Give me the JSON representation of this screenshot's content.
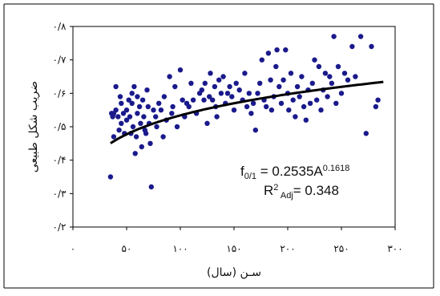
{
  "chart_data": {
    "type": "scatter",
    "title": "",
    "xlabel": "سـن (سال)",
    "ylabel": "ضریب شکل طبیعی",
    "xlim": [
      0,
      300
    ],
    "ylim": [
      0.2,
      0.8
    ],
    "x_ticks": [
      "۰",
      "۵۰",
      "۱۰۰",
      "۱۵۰",
      "۲۰۰",
      "۲۵۰",
      "۳۰۰"
    ],
    "y_ticks": [
      "۰/۲",
      "۰/۳",
      "۰/۴",
      "۰/۵",
      "۰/۶",
      "۰/۷",
      "۰/۸"
    ],
    "x_tick_values": [
      0,
      50,
      100,
      150,
      200,
      250,
      300
    ],
    "y_tick_values": [
      0.2,
      0.3,
      0.4,
      0.5,
      0.6,
      0.7,
      0.8
    ],
    "grid": false,
    "point_color": "#1a1a8c",
    "curve_color": "#000000",
    "series": [
      {
        "points": [
          [
            35,
            0.35
          ],
          [
            36,
            0.54
          ],
          [
            37,
            0.53
          ],
          [
            38,
            0.54
          ],
          [
            38,
            0.47
          ],
          [
            40,
            0.62
          ],
          [
            40,
            0.55
          ],
          [
            42,
            0.53
          ],
          [
            43,
            0.49
          ],
          [
            44,
            0.59
          ],
          [
            45,
            0.57
          ],
          [
            45,
            0.51
          ],
          [
            47,
            0.54
          ],
          [
            48,
            0.48
          ],
          [
            50,
            0.55
          ],
          [
            50,
            0.52
          ],
          [
            52,
            0.58
          ],
          [
            53,
            0.53
          ],
          [
            54,
            0.48
          ],
          [
            55,
            0.6
          ],
          [
            55,
            0.57
          ],
          [
            56,
            0.5
          ],
          [
            57,
            0.62
          ],
          [
            58,
            0.42
          ],
          [
            59,
            0.47
          ],
          [
            60,
            0.59
          ],
          [
            60,
            0.54
          ],
          [
            62,
            0.56
          ],
          [
            63,
            0.51
          ],
          [
            64,
            0.44
          ],
          [
            65,
            0.58
          ],
          [
            66,
            0.53
          ],
          [
            67,
            0.49
          ],
          [
            68,
            0.48
          ],
          [
            69,
            0.61
          ],
          [
            70,
            0.56
          ],
          [
            71,
            0.51
          ],
          [
            72,
            0.45
          ],
          [
            73,
            0.32
          ],
          [
            75,
            0.55
          ],
          [
            77,
            0.53
          ],
          [
            78,
            0.5
          ],
          [
            80,
            0.57
          ],
          [
            82,
            0.55
          ],
          [
            84,
            0.47
          ],
          [
            85,
            0.59
          ],
          [
            87,
            0.52
          ],
          [
            90,
            0.65
          ],
          [
            92,
            0.54
          ],
          [
            93,
            0.56
          ],
          [
            95,
            0.62
          ],
          [
            97,
            0.5
          ],
          [
            100,
            0.67
          ],
          [
            102,
            0.58
          ],
          [
            104,
            0.53
          ],
          [
            106,
            0.57
          ],
          [
            108,
            0.56
          ],
          [
            110,
            0.63
          ],
          [
            112,
            0.58
          ],
          [
            115,
            0.54
          ],
          [
            118,
            0.6
          ],
          [
            120,
            0.61
          ],
          [
            122,
            0.58
          ],
          [
            123,
            0.63
          ],
          [
            125,
            0.51
          ],
          [
            127,
            0.59
          ],
          [
            128,
            0.66
          ],
          [
            130,
            0.58
          ],
          [
            132,
            0.62
          ],
          [
            133,
            0.56
          ],
          [
            134,
            0.53
          ],
          [
            136,
            0.64
          ],
          [
            138,
            0.6
          ],
          [
            140,
            0.65
          ],
          [
            142,
            0.57
          ],
          [
            144,
            0.6
          ],
          [
            146,
            0.62
          ],
          [
            148,
            0.59
          ],
          [
            150,
            0.55
          ],
          [
            152,
            0.63
          ],
          [
            155,
            0.61
          ],
          [
            158,
            0.58
          ],
          [
            160,
            0.66
          ],
          [
            162,
            0.56
          ],
          [
            164,
            0.6
          ],
          [
            166,
            0.54
          ],
          [
            168,
            0.57
          ],
          [
            170,
            0.49
          ],
          [
            172,
            0.6
          ],
          [
            174,
            0.63
          ],
          [
            176,
            0.7
          ],
          [
            178,
            0.58
          ],
          [
            180,
            0.56
          ],
          [
            182,
            0.72
          ],
          [
            184,
            0.64
          ],
          [
            185,
            0.55
          ],
          [
            187,
            0.59
          ],
          [
            189,
            0.68
          ],
          [
            190,
            0.73
          ],
          [
            192,
            0.62
          ],
          [
            194,
            0.57
          ],
          [
            196,
            0.64
          ],
          [
            198,
            0.73
          ],
          [
            200,
            0.6
          ],
          [
            201,
            0.55
          ],
          [
            203,
            0.66
          ],
          [
            205,
            0.58
          ],
          [
            207,
            0.53
          ],
          [
            209,
            0.62
          ],
          [
            211,
            0.59
          ],
          [
            213,
            0.65
          ],
          [
            215,
            0.56
          ],
          [
            217,
            0.52
          ],
          [
            219,
            0.61
          ],
          [
            221,
            0.57
          ],
          [
            223,
            0.63
          ],
          [
            225,
            0.7
          ],
          [
            227,
            0.58
          ],
          [
            229,
            0.68
          ],
          [
            231,
            0.55
          ],
          [
            233,
            0.61
          ],
          [
            235,
            0.66
          ],
          [
            237,
            0.59
          ],
          [
            239,
            0.65
          ],
          [
            241,
            0.63
          ],
          [
            243,
            0.77
          ],
          [
            245,
            0.57
          ],
          [
            247,
            0.68
          ],
          [
            250,
            0.6
          ],
          [
            253,
            0.66
          ],
          [
            256,
            0.64
          ],
          [
            260,
            0.74
          ],
          [
            263,
            0.65
          ],
          [
            268,
            0.77
          ],
          [
            273,
            0.48
          ],
          [
            278,
            0.74
          ],
          [
            282,
            0.56
          ],
          [
            284,
            0.58
          ]
        ]
      }
    ],
    "fit_curve": {
      "equation_lines": [
        {
          "base": "f",
          "sub": "0/1",
          "mid": " = 0.2535A",
          "sup": "0.1618"
        },
        {
          "base": "R",
          "sup": "2",
          "sub": " Adj",
          "mid": "= 0.348"
        }
      ],
      "model": "power",
      "a": 0.2535,
      "b": 0.1618,
      "x_range": [
        35,
        290
      ]
    }
  }
}
